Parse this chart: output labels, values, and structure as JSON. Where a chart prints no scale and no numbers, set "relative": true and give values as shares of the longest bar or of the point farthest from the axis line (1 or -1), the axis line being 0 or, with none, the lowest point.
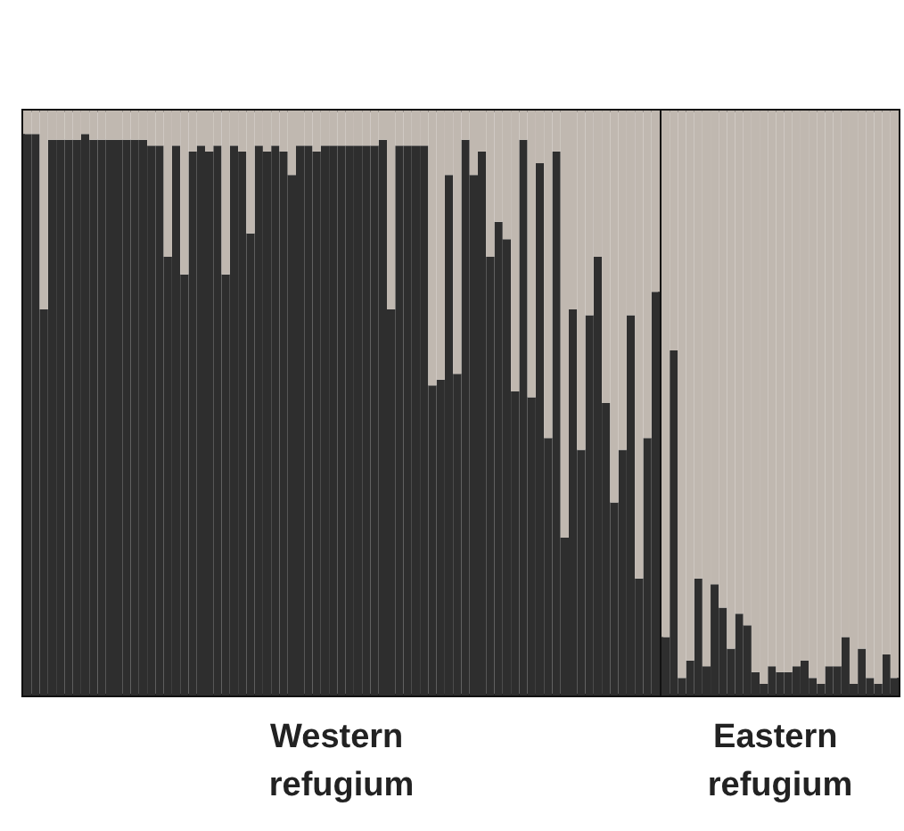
{
  "chart_data": [
    {
      "type": "bar",
      "stacked": true,
      "relative": true,
      "xlabel": "Western refugium",
      "categories": [
        null,
        null,
        null,
        null,
        null,
        null,
        null,
        null,
        null,
        null,
        null,
        null,
        null,
        null,
        null,
        null,
        null,
        null,
        null,
        null,
        null,
        null,
        null,
        null,
        null,
        null,
        null,
        null,
        null,
        null,
        null,
        null,
        null,
        null,
        null,
        null,
        null,
        null,
        null,
        null,
        null,
        null,
        null,
        null,
        null,
        null,
        null,
        null,
        null,
        null,
        null,
        null,
        null,
        null,
        null,
        null,
        null,
        null,
        null,
        null,
        null,
        null,
        null,
        null,
        null,
        null,
        null,
        null,
        null,
        null,
        null,
        null,
        null,
        null,
        null,
        null,
        null
      ],
      "series": [
        {
          "color": "#2e2e2e",
          "values": [
            0.96,
            0.96,
            0.66,
            0.95,
            0.95,
            0.95,
            0.95,
            0.96,
            0.95,
            0.95,
            0.95,
            0.95,
            0.95,
            0.95,
            0.95,
            0.94,
            0.94,
            0.75,
            0.94,
            0.72,
            0.93,
            0.94,
            0.93,
            0.94,
            0.72,
            0.94,
            0.93,
            0.79,
            0.94,
            0.93,
            0.94,
            0.93,
            0.89,
            0.94,
            0.94,
            0.93,
            0.94,
            0.94,
            0.94,
            0.94,
            0.94,
            0.94,
            0.94,
            0.95,
            0.66,
            0.94,
            0.94,
            0.94,
            0.94,
            0.53,
            0.54,
            0.89,
            0.55,
            0.95,
            0.89,
            0.93,
            0.75,
            0.81,
            0.78,
            0.52,
            0.95,
            0.51,
            0.91,
            0.44,
            0.93,
            0.27,
            0.66,
            0.42,
            0.65,
            0.75,
            0.5,
            0.33,
            0.42,
            0.65,
            0.2,
            0.44,
            0.69
          ]
        },
        {
          "color": "#c0b8b0",
          "values": [
            0.04,
            0.04,
            0.34,
            0.05,
            0.05,
            0.05,
            0.05,
            0.04,
            0.05,
            0.05,
            0.05,
            0.05,
            0.05,
            0.05,
            0.05,
            0.06,
            0.06,
            0.25,
            0.06,
            0.28,
            0.07,
            0.06,
            0.07,
            0.06,
            0.28,
            0.06,
            0.07,
            0.21,
            0.06,
            0.07,
            0.06,
            0.07,
            0.11,
            0.06,
            0.06,
            0.07,
            0.06,
            0.06,
            0.06,
            0.06,
            0.06,
            0.06,
            0.06,
            0.05,
            0.34,
            0.06,
            0.06,
            0.06,
            0.06,
            0.47,
            0.46,
            0.11,
            0.45,
            0.05,
            0.11,
            0.07,
            0.25,
            0.19,
            0.22,
            0.48,
            0.05,
            0.49,
            0.09,
            0.56,
            0.07,
            0.73,
            0.34,
            0.58,
            0.35,
            0.25,
            0.5,
            0.67,
            0.58,
            0.35,
            0.8,
            0.56,
            0.31
          ]
        }
      ]
    },
    {
      "type": "bar",
      "stacked": true,
      "relative": true,
      "xlabel": "Eastern refugium",
      "categories": [
        null,
        null,
        null,
        null,
        null,
        null,
        null,
        null,
        null,
        null,
        null,
        null,
        null,
        null,
        null,
        null,
        null,
        null,
        null,
        null,
        null,
        null,
        null,
        null,
        null,
        null,
        null,
        null,
        null
      ],
      "series": [
        {
          "color": "#2e2e2e",
          "values": [
            0.1,
            0.59,
            0.03,
            0.06,
            0.2,
            0.05,
            0.19,
            0.15,
            0.08,
            0.14,
            0.12,
            0.04,
            0.02,
            0.05,
            0.04,
            0.04,
            0.05,
            0.06,
            0.03,
            0.02,
            0.05,
            0.05,
            0.1,
            0.02,
            0.08,
            0.03,
            0.02,
            0.07,
            0.03
          ]
        },
        {
          "color": "#c0b8b0",
          "values": [
            0.9,
            0.41,
            0.97,
            0.94,
            0.8,
            0.95,
            0.81,
            0.85,
            0.92,
            0.86,
            0.88,
            0.96,
            0.98,
            0.95,
            0.96,
            0.96,
            0.95,
            0.94,
            0.97,
            0.98,
            0.95,
            0.95,
            0.9,
            0.98,
            0.92,
            0.97,
            0.98,
            0.93,
            0.97
          ]
        }
      ]
    }
  ]
}
